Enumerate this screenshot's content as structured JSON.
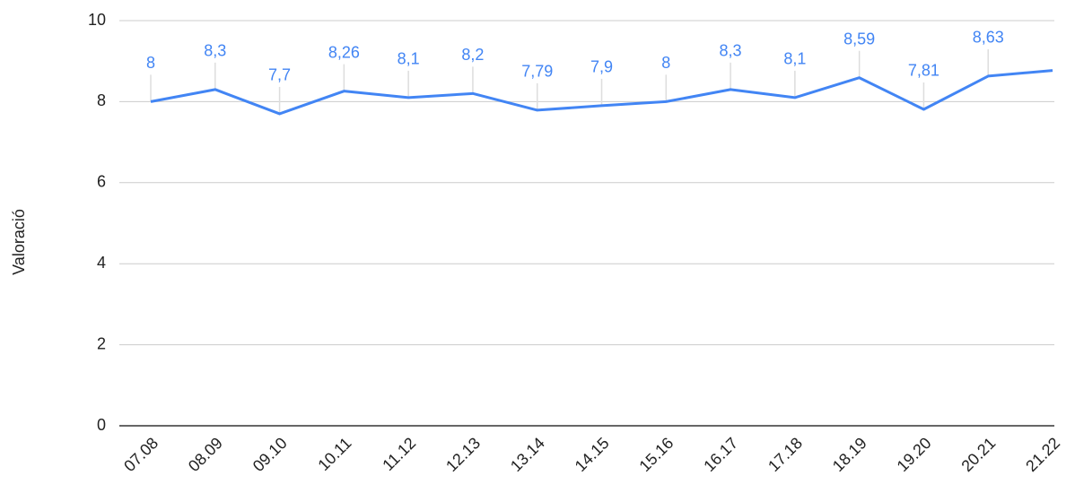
{
  "chart_data": {
    "type": "line",
    "y_label": "Valoració",
    "categories": [
      "07.08",
      "08.09",
      "09.10",
      "10.11",
      "11.12",
      "12.13",
      "13.14",
      "14.15",
      "15.16",
      "16.17",
      "17.18",
      "18.19",
      "19.20",
      "20.21",
      "21.22"
    ],
    "series": [
      {
        "name": "Valoració",
        "color": "#4285f4",
        "values": [
          8,
          8.3,
          7.7,
          8.26,
          8.1,
          8.2,
          7.79,
          7.9,
          8,
          8.3,
          8.1,
          8.59,
          7.81,
          8.63,
          8.77
        ],
        "value_labels": [
          "8",
          "8,3",
          "7,7",
          "8,26",
          "8,1",
          "8,2",
          "7,79",
          "7,9",
          "8",
          "8,3",
          "8,1",
          "8,59",
          "7,81",
          "8,63",
          null
        ]
      }
    ],
    "ylim": [
      0,
      10
    ],
    "yticks": [
      0,
      2,
      4,
      6,
      8,
      10
    ],
    "grid": true
  }
}
